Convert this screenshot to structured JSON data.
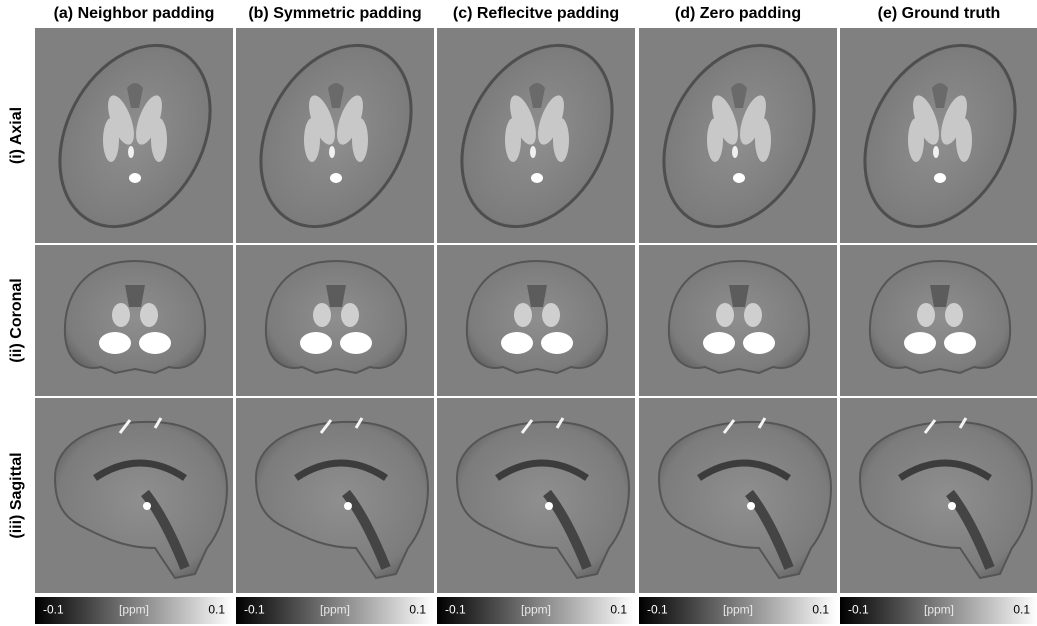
{
  "column_headers": [
    "(a) Neighbor padding",
    "(b) Symmetric padding",
    "(c) Reflecitve padding",
    "(d) Zero padding",
    "(e) Ground truth"
  ],
  "row_labels": [
    "(i) Axial",
    "(ii) Coronal",
    "(iii) Sagittal"
  ],
  "colorbars": [
    {
      "min": -0.1,
      "unit": "[ppm]",
      "max": 0.1
    },
    {
      "min": -0.1,
      "unit": "[ppm]",
      "max": 0.1
    },
    {
      "min": -0.1,
      "unit": "[ppm]",
      "max": 0.1
    },
    {
      "min": -0.1,
      "unit": "[ppm]",
      "max": 0.1
    },
    {
      "min": -0.1,
      "unit": "[ppm]",
      "max": 0.1
    }
  ]
}
